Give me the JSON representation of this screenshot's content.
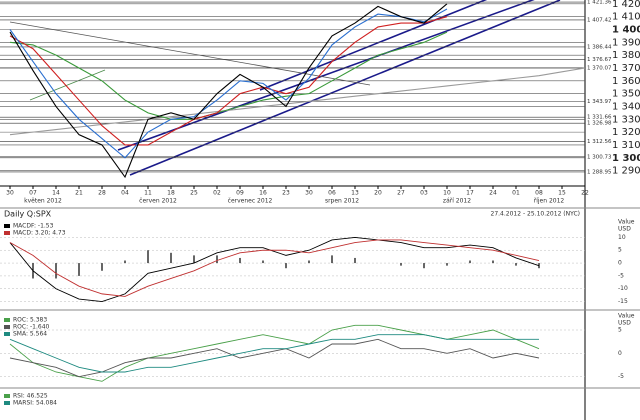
{
  "chart_data": [
    {
      "type": "line",
      "categories": [
        "30",
        "07",
        "14",
        "21",
        "28",
        "04",
        "11",
        "18",
        "25",
        "02",
        "09",
        "16",
        "23",
        "30",
        "06",
        "13",
        "20",
        "27",
        "03",
        "10",
        "17",
        "24",
        "01",
        "08",
        "15",
        "22"
      ],
      "months": [
        "květen 2012",
        "červen 2012",
        "červenec 2012",
        "srpen 2012",
        "září 2012",
        "říjen 2012"
      ],
      "ylim": [
        1278,
        1423
      ],
      "yticks": [
        {
          "value": 1420,
          "label": "1 420"
        },
        {
          "value": 1410,
          "label": "1 410"
        },
        {
          "value": 1400,
          "label": "1 400"
        },
        {
          "value": 1390,
          "label": "1 390"
        },
        {
          "value": 1380,
          "label": "1 380"
        },
        {
          "value": 1370,
          "label": "1 370"
        },
        {
          "value": 1360,
          "label": "1 360"
        },
        {
          "value": 1350,
          "label": "1 350"
        },
        {
          "value": 1340,
          "label": "1 340"
        },
        {
          "value": 1330,
          "label": "1 330"
        },
        {
          "value": 1320,
          "label": "1 320"
        },
        {
          "value": 1310,
          "label": "1 310"
        },
        {
          "value": 1300,
          "label": "1 300"
        },
        {
          "value": 1290,
          "label": "1 290"
        }
      ],
      "levels": [
        {
          "value": 1421.36,
          "label": "1 421.36"
        },
        {
          "value": 1407.42,
          "label": "1 407.42"
        },
        {
          "value": 1386.44,
          "label": "1 386.44"
        },
        {
          "value": 1376.67,
          "label": "1 376.67"
        },
        {
          "value": 1370.07,
          "label": "1 370.07"
        },
        {
          "value": 1343.97,
          "label": "1 343.97"
        },
        {
          "value": 1331.66,
          "label": "1 331.66"
        },
        {
          "value": 1326.98,
          "label": "1 326.98"
        },
        {
          "value": 1312.56,
          "label": "1 312.56"
        },
        {
          "value": 1300.73,
          "label": "1 300.73"
        },
        {
          "value": 1288.95,
          "label": "1 288.95"
        }
      ],
      "series": [
        {
          "color": "#9a9a9a",
          "values": [
            1318,
            1320,
            1322,
            1324,
            1326,
            1328,
            1330,
            1332,
            1334,
            1336,
            1338,
            1340,
            1342,
            1344,
            1346,
            1348,
            1350,
            1352,
            1354,
            1356,
            1358,
            1360,
            1362,
            1364,
            1367,
            1370
          ]
        },
        {
          "color": "#3a9a3a",
          "values": [
            1390,
            1388,
            1380,
            1370,
            1360,
            1345,
            1335,
            1330,
            1330,
            1335,
            1340,
            1345,
            1348,
            1350,
            1360,
            1370,
            1380,
            1385,
            1390,
            1398,
            null,
            null,
            null,
            null,
            null,
            null
          ]
        },
        {
          "color": "#d02020",
          "values": [
            1395,
            1385,
            1365,
            1345,
            1325,
            1310,
            1310,
            1320,
            1330,
            1335,
            1350,
            1355,
            1350,
            1355,
            1375,
            1390,
            1402,
            1405,
            1405,
            1410,
            null,
            null,
            null,
            null,
            null,
            null
          ]
        },
        {
          "color": "#2a6fd0",
          "values": [
            1400,
            1375,
            1350,
            1330,
            1315,
            1300,
            1320,
            1330,
            1332,
            1345,
            1360,
            1358,
            1345,
            1362,
            1388,
            1402,
            1412,
            1410,
            1406,
            1416,
            null,
            null,
            null,
            null,
            null,
            null
          ]
        },
        {
          "color": "#000000",
          "values": [
            1398,
            1368,
            1340,
            1318,
            1310,
            1285,
            1330,
            1335,
            1330,
            1350,
            1365,
            1355,
            1340,
            1370,
            1395,
            1405,
            1418,
            1410,
            1405,
            1420,
            null,
            null,
            null,
            null,
            null,
            null
          ]
        }
      ]
    },
    {
      "type": "line",
      "title": "Daily Q:SPX",
      "subtitle": "27.4.2012 - 25.10.2012 (NYC)",
      "y_unit_label": [
        "Value",
        "USD"
      ],
      "ylim": [
        -17.5,
        16
      ],
      "yticks": [
        10,
        5,
        0,
        -5,
        -10,
        -15
      ],
      "series": [
        {
          "type": "bar",
          "color": "#000000",
          "values": [
            0,
            -6,
            -6,
            -5,
            -3,
            1,
            5,
            4,
            3,
            3,
            2,
            1,
            -2,
            1,
            3,
            2,
            0,
            -1,
            -2,
            -1,
            1,
            1,
            -1,
            -2
          ]
        },
        {
          "name": "MACDF: -1.53",
          "color": "#000000",
          "values": [
            8,
            -3,
            -10,
            -14,
            -15,
            -12,
            -4,
            -2,
            0,
            4,
            6,
            6,
            3,
            5,
            9,
            10,
            9,
            8,
            6,
            6,
            7,
            6,
            2,
            -1
          ]
        },
        {
          "name": "MACD: 3.20; 4.73",
          "color": "#c03030",
          "values": [
            8,
            3,
            -4,
            -9,
            -12,
            -13,
            -9,
            -6,
            -3,
            1,
            4,
            5,
            5,
            4,
            6,
            8,
            9,
            9,
            8,
            7,
            6,
            5,
            3,
            1
          ]
        }
      ]
    },
    {
      "type": "line",
      "y_unit_label": [
        "Value",
        "USD"
      ],
      "ylim": [
        -7,
        8
      ],
      "yticks": [
        5,
        0,
        -5
      ],
      "series": [
        {
          "name": "ROC: 5.383",
          "color": "#4aa04a",
          "values": [
            2,
            -2,
            -4,
            -5,
            -6,
            -3,
            -1,
            0,
            1,
            2,
            3,
            4,
            3,
            2,
            5,
            6,
            6,
            5,
            4,
            3,
            4,
            5,
            3,
            1
          ]
        },
        {
          "name": "ROC: -1.640",
          "color": "#555555",
          "values": [
            -1,
            -2,
            -3,
            -5,
            -4,
            -2,
            -1,
            -1,
            0,
            1,
            -1,
            0,
            1,
            -1,
            2,
            2,
            3,
            1,
            1,
            0,
            1,
            -1,
            0,
            -1
          ]
        },
        {
          "name": "SMA: 5.564",
          "color": "#1e8a80",
          "values": [
            3,
            1,
            -1,
            -3,
            -4,
            -4,
            -3,
            -3,
            -2,
            -1,
            0,
            1,
            1,
            2,
            3,
            3,
            4,
            4,
            4,
            3,
            3,
            3,
            3,
            3
          ]
        }
      ]
    }
  ],
  "footer_legend": [
    {
      "name": "RSI: 46.525",
      "color": "#4aa04a"
    },
    {
      "name": "MARSI: 54.084",
      "color": "#1e8a80"
    }
  ]
}
